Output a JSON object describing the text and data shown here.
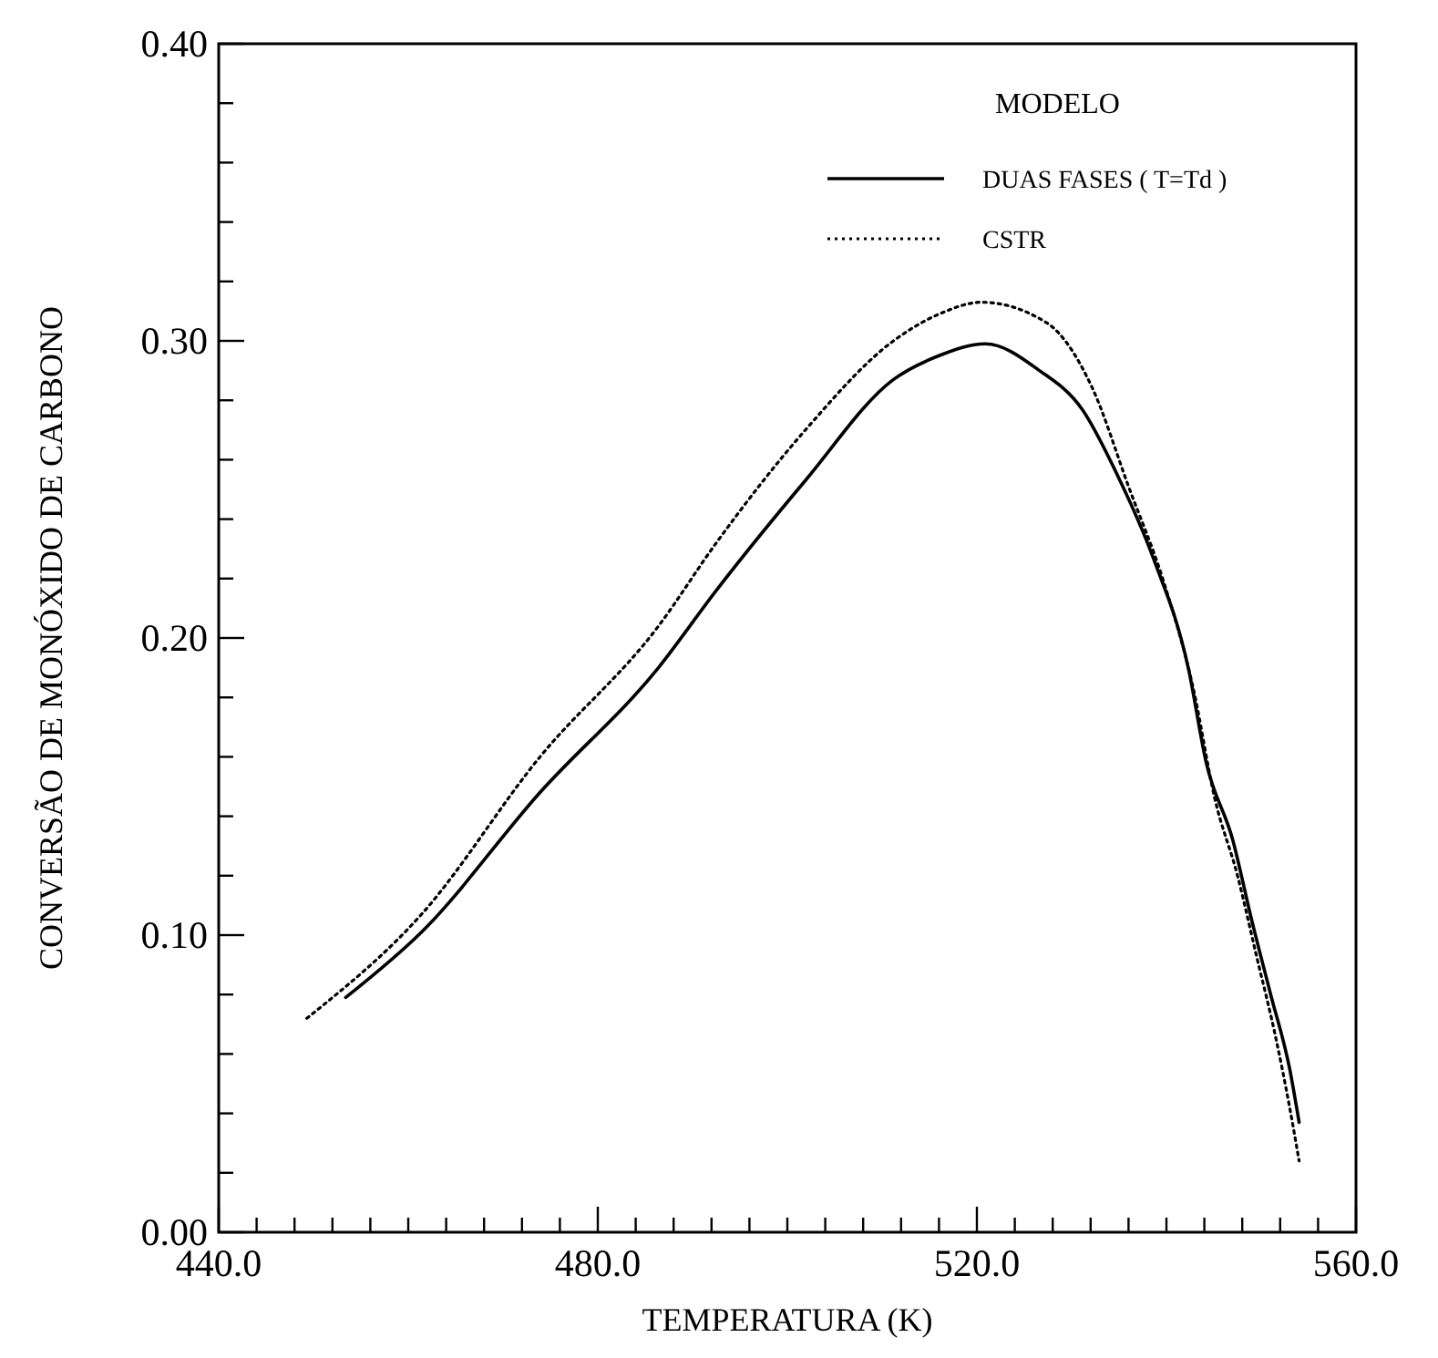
{
  "chart_data": {
    "type": "line",
    "xlabel": "TEMPERATURA (K)",
    "ylabel": "CONVERSÃO DE MONÓXIDO DE CARBONO",
    "legend_title": "MODELO",
    "legend": "top right",
    "grid": false,
    "xlim": [
      440,
      560
    ],
    "ylim": [
      0,
      0.4
    ],
    "xticks": [
      {
        "value": 440,
        "label": "440.0"
      },
      {
        "value": 444,
        "label": null
      },
      {
        "value": 448,
        "label": null
      },
      {
        "value": 452,
        "label": null
      },
      {
        "value": 456,
        "label": null
      },
      {
        "value": 460,
        "label": null
      },
      {
        "value": 464,
        "label": null
      },
      {
        "value": 468,
        "label": null
      },
      {
        "value": 472,
        "label": null
      },
      {
        "value": 476,
        "label": null
      },
      {
        "value": 480,
        "label": "480.0"
      },
      {
        "value": 484,
        "label": null
      },
      {
        "value": 488,
        "label": null
      },
      {
        "value": 492,
        "label": null
      },
      {
        "value": 496,
        "label": null
      },
      {
        "value": 500,
        "label": null
      },
      {
        "value": 504,
        "label": null
      },
      {
        "value": 508,
        "label": null
      },
      {
        "value": 512,
        "label": null
      },
      {
        "value": 516,
        "label": null
      },
      {
        "value": 520,
        "label": "520.0"
      },
      {
        "value": 524,
        "label": null
      },
      {
        "value": 528,
        "label": null
      },
      {
        "value": 532,
        "label": null
      },
      {
        "value": 536,
        "label": null
      },
      {
        "value": 540,
        "label": null
      },
      {
        "value": 544,
        "label": null
      },
      {
        "value": 548,
        "label": null
      },
      {
        "value": 552,
        "label": null
      },
      {
        "value": 556,
        "label": null
      },
      {
        "value": 560,
        "label": "560.0"
      }
    ],
    "yticks": [
      {
        "value": 0,
        "label": "0.00"
      },
      {
        "value": 0.02,
        "label": null
      },
      {
        "value": 0.04,
        "label": null
      },
      {
        "value": 0.06,
        "label": null
      },
      {
        "value": 0.08,
        "label": null
      },
      {
        "value": 0.1,
        "label": "0.10"
      },
      {
        "value": 0.12,
        "label": null
      },
      {
        "value": 0.14,
        "label": null
      },
      {
        "value": 0.16,
        "label": null
      },
      {
        "value": 0.18,
        "label": null
      },
      {
        "value": 0.2,
        "label": "0.20"
      },
      {
        "value": 0.22,
        "label": null
      },
      {
        "value": 0.24,
        "label": null
      },
      {
        "value": 0.26,
        "label": null
      },
      {
        "value": 0.28,
        "label": null
      },
      {
        "value": 0.3,
        "label": "0.30"
      },
      {
        "value": 0.32,
        "label": null
      },
      {
        "value": 0.34,
        "label": null
      },
      {
        "value": 0.36,
        "label": null
      },
      {
        "value": 0.38,
        "label": null
      },
      {
        "value": 0.4,
        "label": "0.40"
      }
    ],
    "series": [
      {
        "name": "DUAS FASES ( T=Td )",
        "color": "#000000",
        "line_style": "solid",
        "x": [
          453.4,
          461.4,
          473.9,
          486.4,
          492.5,
          501.9,
          511.2,
          516,
          520.9,
          526.6,
          531.1,
          534.8,
          538.6,
          542.3,
          544.2,
          547,
          549,
          551,
          553,
          554
        ],
        "values": [
          0.079,
          0.101,
          0.148,
          0.19,
          0.216,
          0.253,
          0.287,
          0.295,
          0.299,
          0.29,
          0.277,
          0.255,
          0.227,
          0.19,
          0.158,
          0.132,
          0.105,
          0.08,
          0.055,
          0.037
        ]
      },
      {
        "name": "CSTR",
        "color": "#000000",
        "line_style": "dotted",
        "x": [
          449.3,
          461.4,
          473.9,
          486.4,
          492.5,
          501.9,
          511.2,
          516,
          520.5,
          527.4,
          532.2,
          536,
          539.7,
          542.9,
          545.1,
          547.5,
          549.5,
          551.5,
          553,
          554
        ],
        "values": [
          0.072,
          0.107,
          0.16,
          0.204,
          0.232,
          0.27,
          0.3,
          0.309,
          0.313,
          0.306,
          0.284,
          0.251,
          0.219,
          0.182,
          0.146,
          0.12,
          0.093,
          0.066,
          0.042,
          0.024
        ]
      }
    ]
  }
}
